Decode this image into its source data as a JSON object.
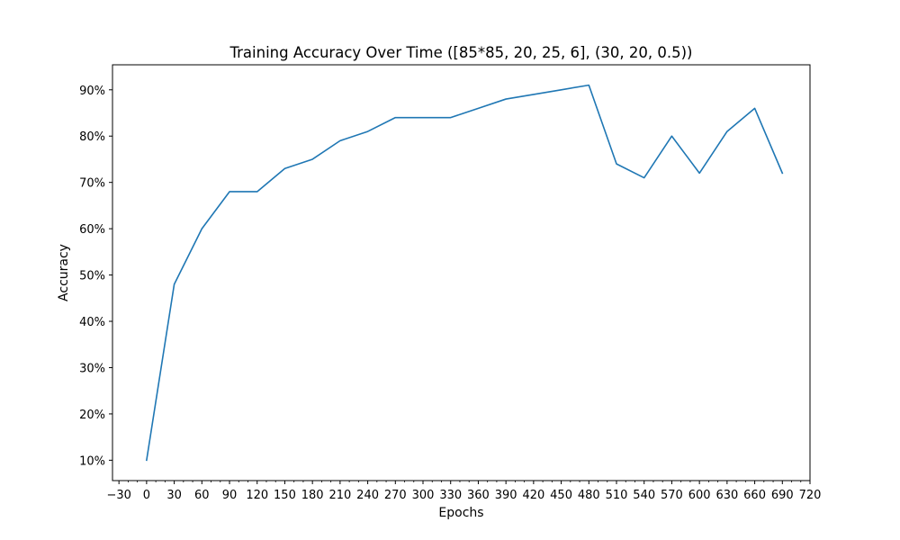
{
  "chart_data": {
    "type": "line",
    "title": "Training Accuracy Over Time ([85*85, 20, 25, 6], (30, 20, 0.5))",
    "xlabel": "Epochs",
    "ylabel": "Accuracy",
    "xlim": [
      -37,
      720
    ],
    "ylim": [
      5.6,
      95.4
    ],
    "x_ticks": [
      -30,
      0,
      30,
      60,
      90,
      120,
      150,
      180,
      210,
      240,
      270,
      300,
      330,
      360,
      390,
      420,
      450,
      480,
      510,
      540,
      570,
      600,
      630,
      660,
      690,
      720
    ],
    "x_tick_labels": [
      "−30",
      "0",
      "30",
      "60",
      "90",
      "120",
      "150",
      "180",
      "210",
      "240",
      "270",
      "300",
      "330",
      "360",
      "390",
      "420",
      "450",
      "480",
      "510",
      "540",
      "570",
      "600",
      "630",
      "660",
      "690",
      "720"
    ],
    "y_ticks": [
      10,
      20,
      30,
      40,
      50,
      60,
      70,
      80,
      90
    ],
    "y_tick_labels": [
      "10%",
      "20%",
      "30%",
      "40%",
      "50%",
      "60%",
      "70%",
      "80%",
      "90%"
    ],
    "grid": false,
    "series": [
      {
        "color": "#1f77b4",
        "x": [
          0,
          30,
          60,
          90,
          120,
          150,
          180,
          210,
          240,
          270,
          300,
          330,
          360,
          390,
          420,
          450,
          480,
          510,
          540,
          570,
          600,
          630,
          660,
          690
        ],
        "values": [
          10,
          48,
          60,
          68,
          68,
          73,
          75,
          79,
          81,
          84,
          84,
          84,
          86,
          88,
          89,
          90,
          91,
          74,
          71,
          80,
          72,
          81,
          86,
          72
        ]
      }
    ]
  }
}
